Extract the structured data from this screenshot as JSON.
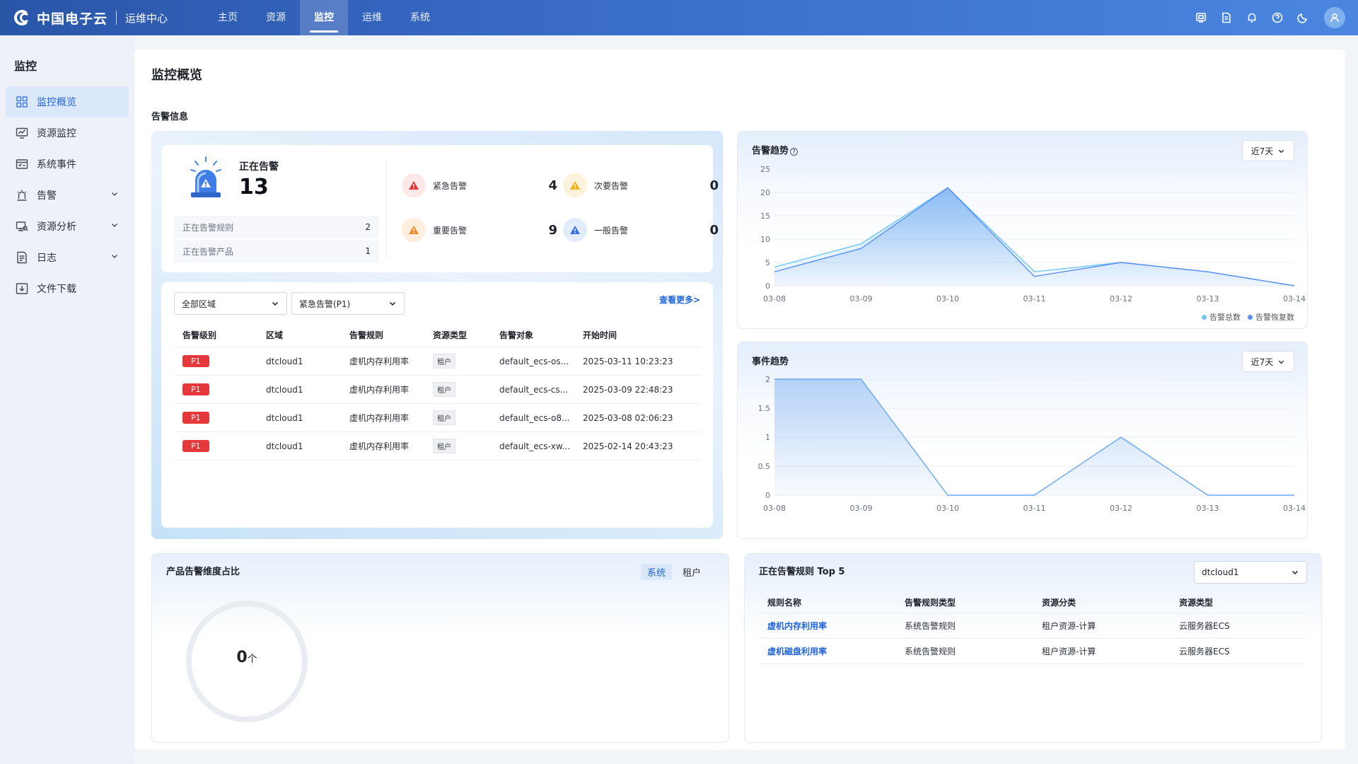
{
  "brand": {
    "logo_text": "中国电子云",
    "sub_title": "运维中心"
  },
  "nav": [
    "主页",
    "资源",
    "监控",
    "运维",
    "系统"
  ],
  "top_icons": [
    "screen-icon",
    "document-icon",
    "bell-icon",
    "help-icon",
    "moon-icon",
    "user-icon"
  ],
  "sidebar": {
    "title": "监控",
    "items": [
      {
        "label": "监控概览",
        "icon": "dashboard-icon",
        "active": true
      },
      {
        "label": "资源监控",
        "icon": "monitor-icon"
      },
      {
        "label": "系统事件",
        "icon": "event-icon"
      },
      {
        "label": "告警",
        "icon": "alarm-icon",
        "expandable": true
      },
      {
        "label": "资源分析",
        "icon": "analysis-icon",
        "expandable": true
      },
      {
        "label": "日志",
        "icon": "log-icon",
        "expandable": true
      },
      {
        "label": "文件下载",
        "icon": "download-icon"
      }
    ]
  },
  "page_title": "监控概览",
  "alarm_section_title": "告警信息",
  "summary": {
    "label": "正在告警",
    "value": "13",
    "rules_label": "正在告警规则",
    "rules_value": "2",
    "products_label": "正在告警产品",
    "products_value": "1",
    "severities": [
      {
        "label": "紧急告警",
        "value": "4",
        "color": "#e5383b"
      },
      {
        "label": "次要告警",
        "value": "0",
        "color": "#f5b31a"
      },
      {
        "label": "重要告警",
        "value": "9",
        "color": "#f08a24"
      },
      {
        "label": "一般告警",
        "value": "0",
        "color": "#3b6fe0"
      }
    ]
  },
  "filters": {
    "region": "全部区域",
    "level": "紧急告警(P1)"
  },
  "see_more": "查看更多>",
  "alarm_table": {
    "headers": [
      "告警级别",
      "区域",
      "告警规则",
      "资源类型",
      "告警对象",
      "开始时间"
    ],
    "rows": [
      [
        "P1",
        "dtcloud1",
        "虚机内存利用率",
        "租户",
        "default_ecs-os...",
        "2025-03-11 10:23:23"
      ],
      [
        "P1",
        "dtcloud1",
        "虚机内存利用率",
        "租户",
        "default_ecs-cs...",
        "2025-03-09 22:48:23"
      ],
      [
        "P1",
        "dtcloud1",
        "虚机内存利用率",
        "租户",
        "default_ecs-o8...",
        "2025-03-08 02:06:23"
      ],
      [
        "P1",
        "dtcloud1",
        "虚机内存利用率",
        "租户",
        "default_ecs-xw...",
        "2025-02-14 20:43:23"
      ]
    ]
  },
  "alarm_trend": {
    "title": "告警趋势",
    "range": "近7天",
    "legend": [
      "告警总数",
      "告警恢复数"
    ]
  },
  "event_trend": {
    "title": "事件趋势",
    "range": "近7天"
  },
  "chart_data": [
    {
      "type": "area",
      "title": "告警趋势",
      "categories": [
        "03-08",
        "03-09",
        "03-10",
        "03-11",
        "03-12",
        "03-13",
        "03-14"
      ],
      "yticks": [
        0,
        5,
        10,
        15,
        20,
        25
      ],
      "ylim": [
        0,
        25
      ],
      "series": [
        {
          "name": "告警总数",
          "values": [
            4,
            9,
            21,
            3,
            5,
            3,
            0
          ],
          "color": "#6ec6f5"
        },
        {
          "name": "告警恢复数",
          "values": [
            3,
            8,
            21,
            2,
            5,
            3,
            0
          ],
          "color": "#5b8ff0"
        }
      ],
      "legend": "bottom-right",
      "grid": true
    },
    {
      "type": "area",
      "title": "事件趋势",
      "categories": [
        "03-08",
        "03-09",
        "03-10",
        "03-11",
        "03-12",
        "03-13",
        "03-14"
      ],
      "yticks": [
        0,
        0.5,
        1,
        1.5,
        2
      ],
      "ylim": [
        0,
        2
      ],
      "series": [
        {
          "values": [
            2,
            2,
            0,
            0,
            1,
            0,
            0
          ],
          "color": "#6aa6f0"
        }
      ],
      "grid": true
    }
  ],
  "product_ratio": {
    "title": "产品告警维度占比",
    "tabs": [
      "系统",
      "租户"
    ],
    "value": "0",
    "unit": "个"
  },
  "top5": {
    "title": "正在告警规则 Top 5",
    "region": "dtcloud1",
    "headers": [
      "规则名称",
      "告警规则类型",
      "资源分类",
      "资源类型"
    ],
    "rows": [
      [
        "虚机内存利用率",
        "系统告警规则",
        "租户资源-计算",
        "云服务器ECS"
      ],
      [
        "虚机磁盘利用率",
        "系统告警规则",
        "租户资源-计算",
        "云服务器ECS"
      ]
    ]
  }
}
